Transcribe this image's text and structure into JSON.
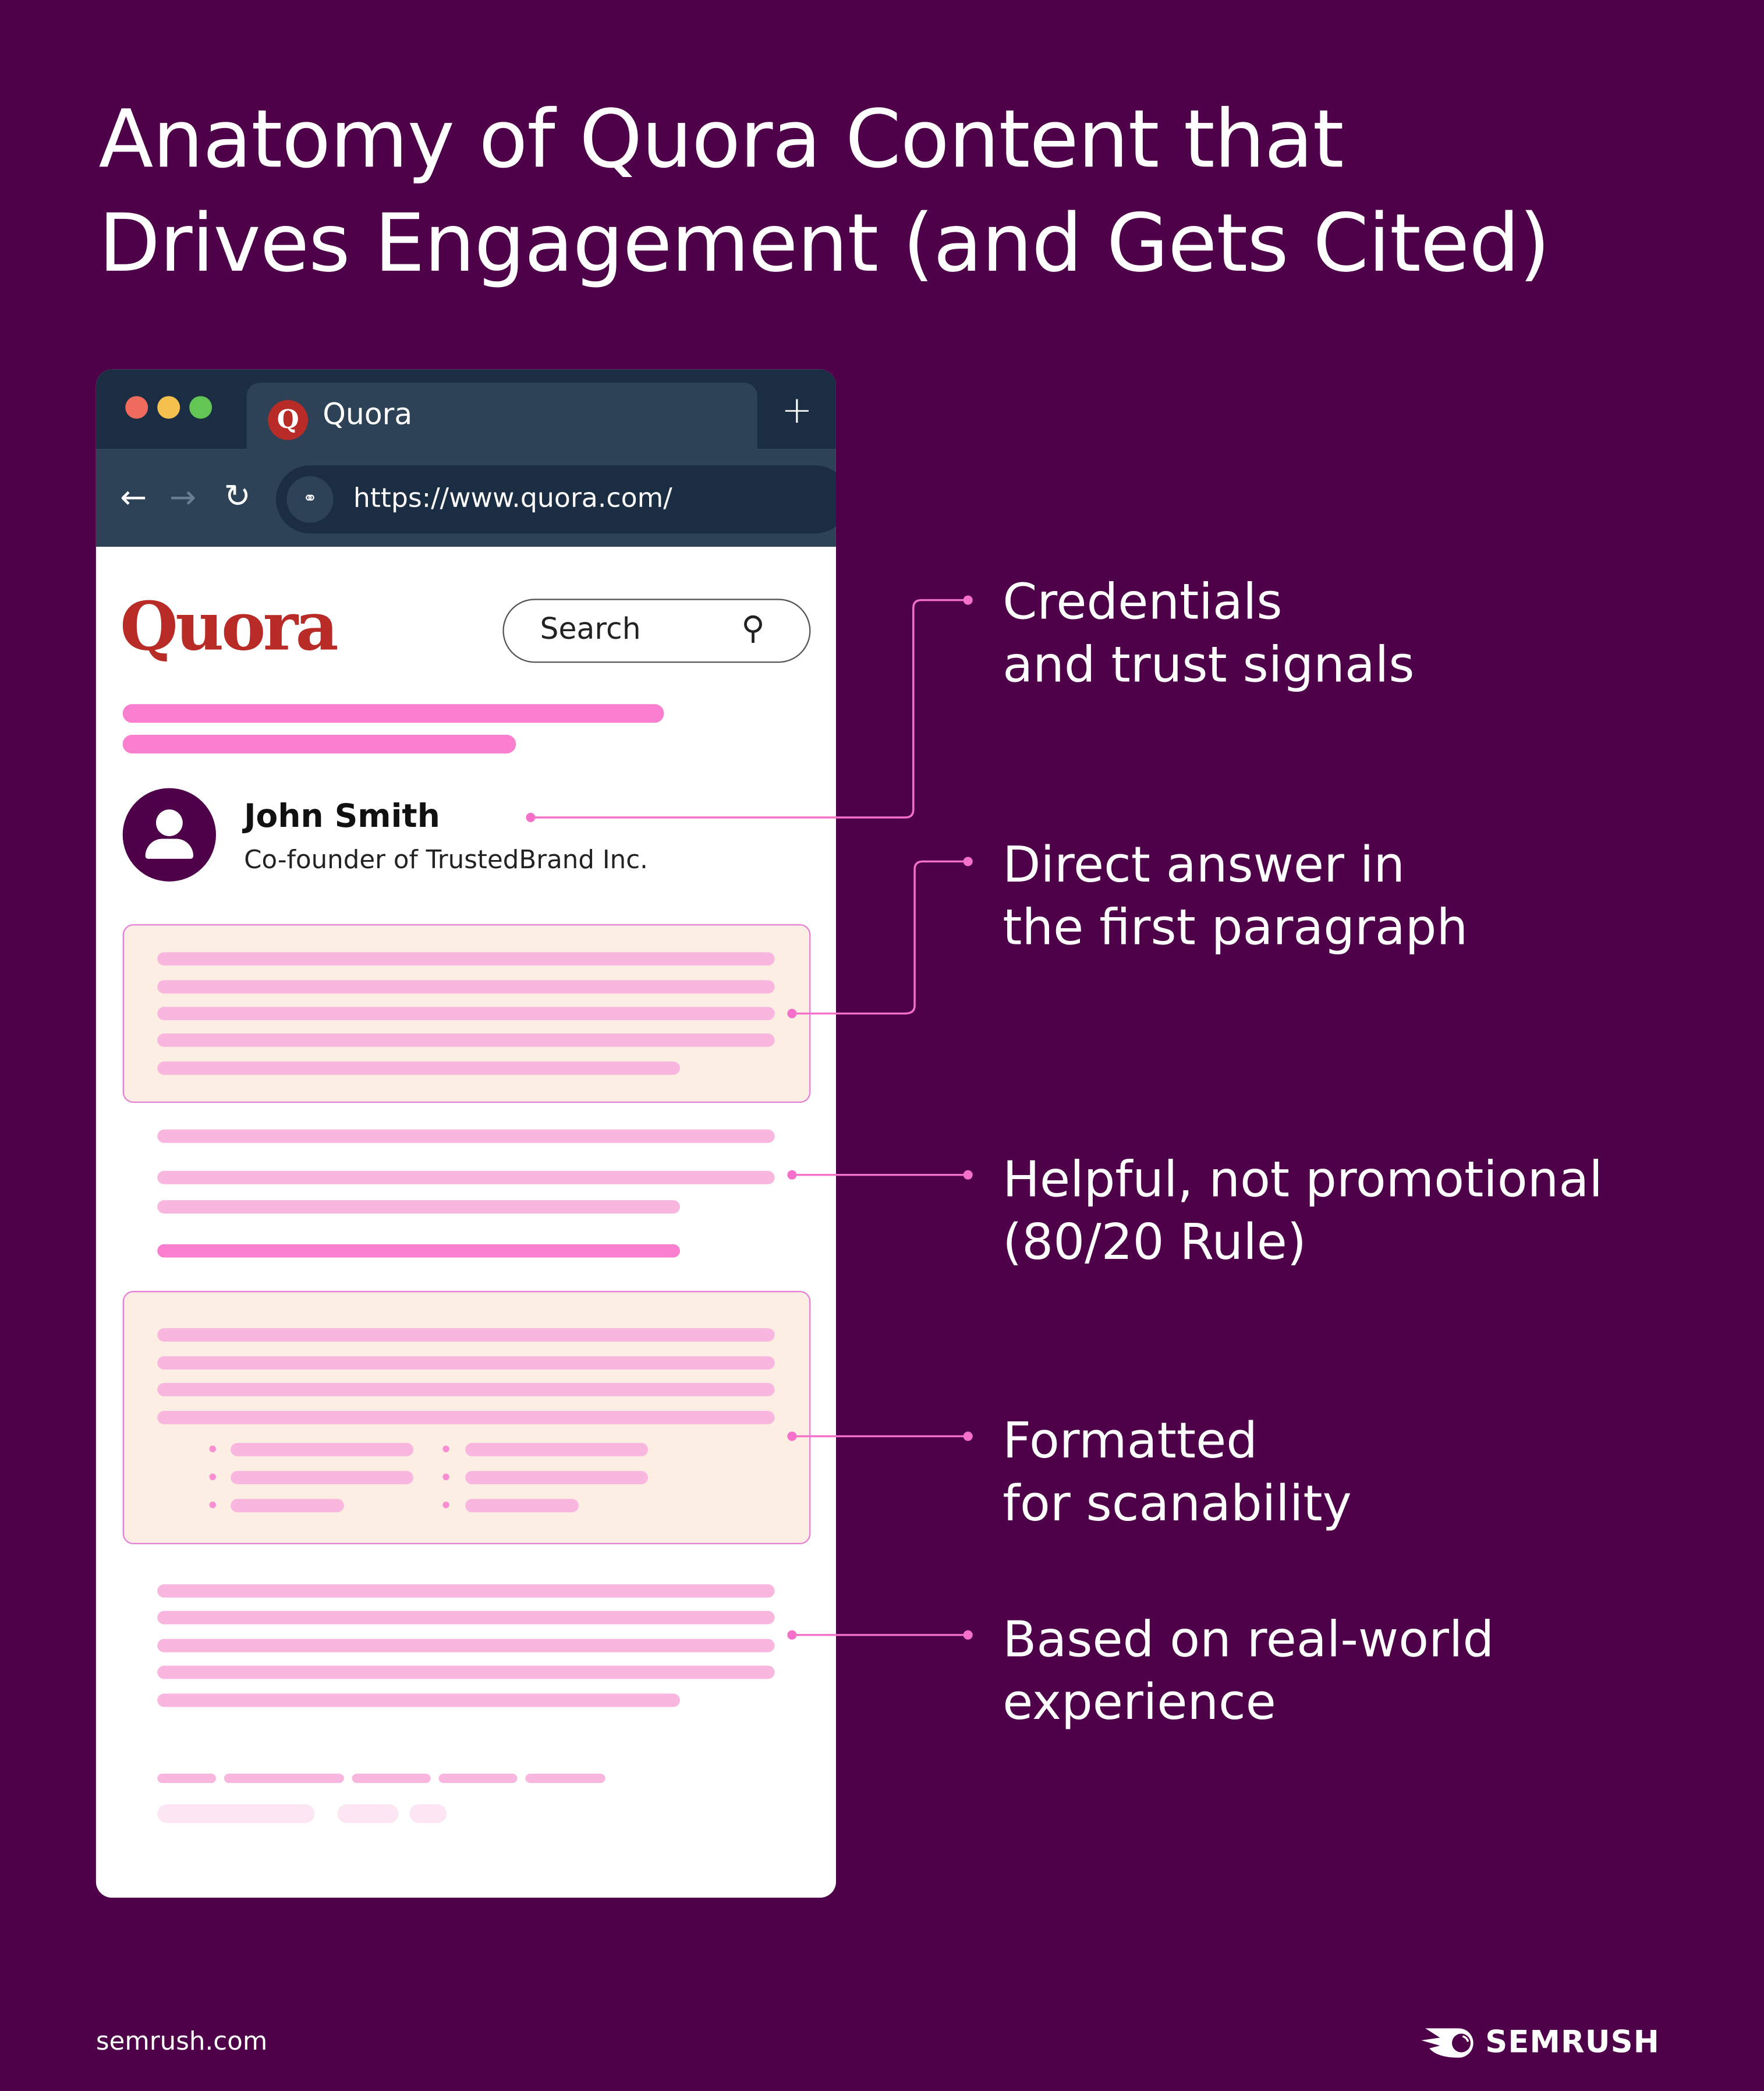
{
  "title": {
    "line1": "Anatomy of Quora Content that",
    "line2": "Drives Engagement (and Gets Cited)"
  },
  "browser": {
    "tab_title": "Quora",
    "tab_icon": "Q",
    "new_tab": "+",
    "url": "https://www.quora.com/",
    "icons": [
      "back-arrow-icon",
      "forward-arrow-icon",
      "reload-icon",
      "site-settings-icon"
    ]
  },
  "page": {
    "logo": "Quora",
    "search_placeholder": "Search",
    "author_name": "John Smith",
    "author_title": "Co-founder of TrustedBrand Inc."
  },
  "annotations": [
    {
      "line1": "Credentials",
      "line2": "and trust signals"
    },
    {
      "line1": "Direct answer in",
      "line2": "the first paragraph"
    },
    {
      "line1": "Helpful, not promotional",
      "line2": "(80/20 Rule)"
    },
    {
      "line1": "Formatted",
      "line2": "for scanability"
    },
    {
      "line1": "Based on real-world",
      "line2": "experience"
    }
  ],
  "footer": {
    "site": "semrush.com",
    "brand": "SEMRUSH"
  },
  "colors": {
    "background": "#4e0048",
    "accent_pink": "#fb7fcf",
    "quora_red": "#b92b27",
    "panel": "#fdeee3"
  }
}
